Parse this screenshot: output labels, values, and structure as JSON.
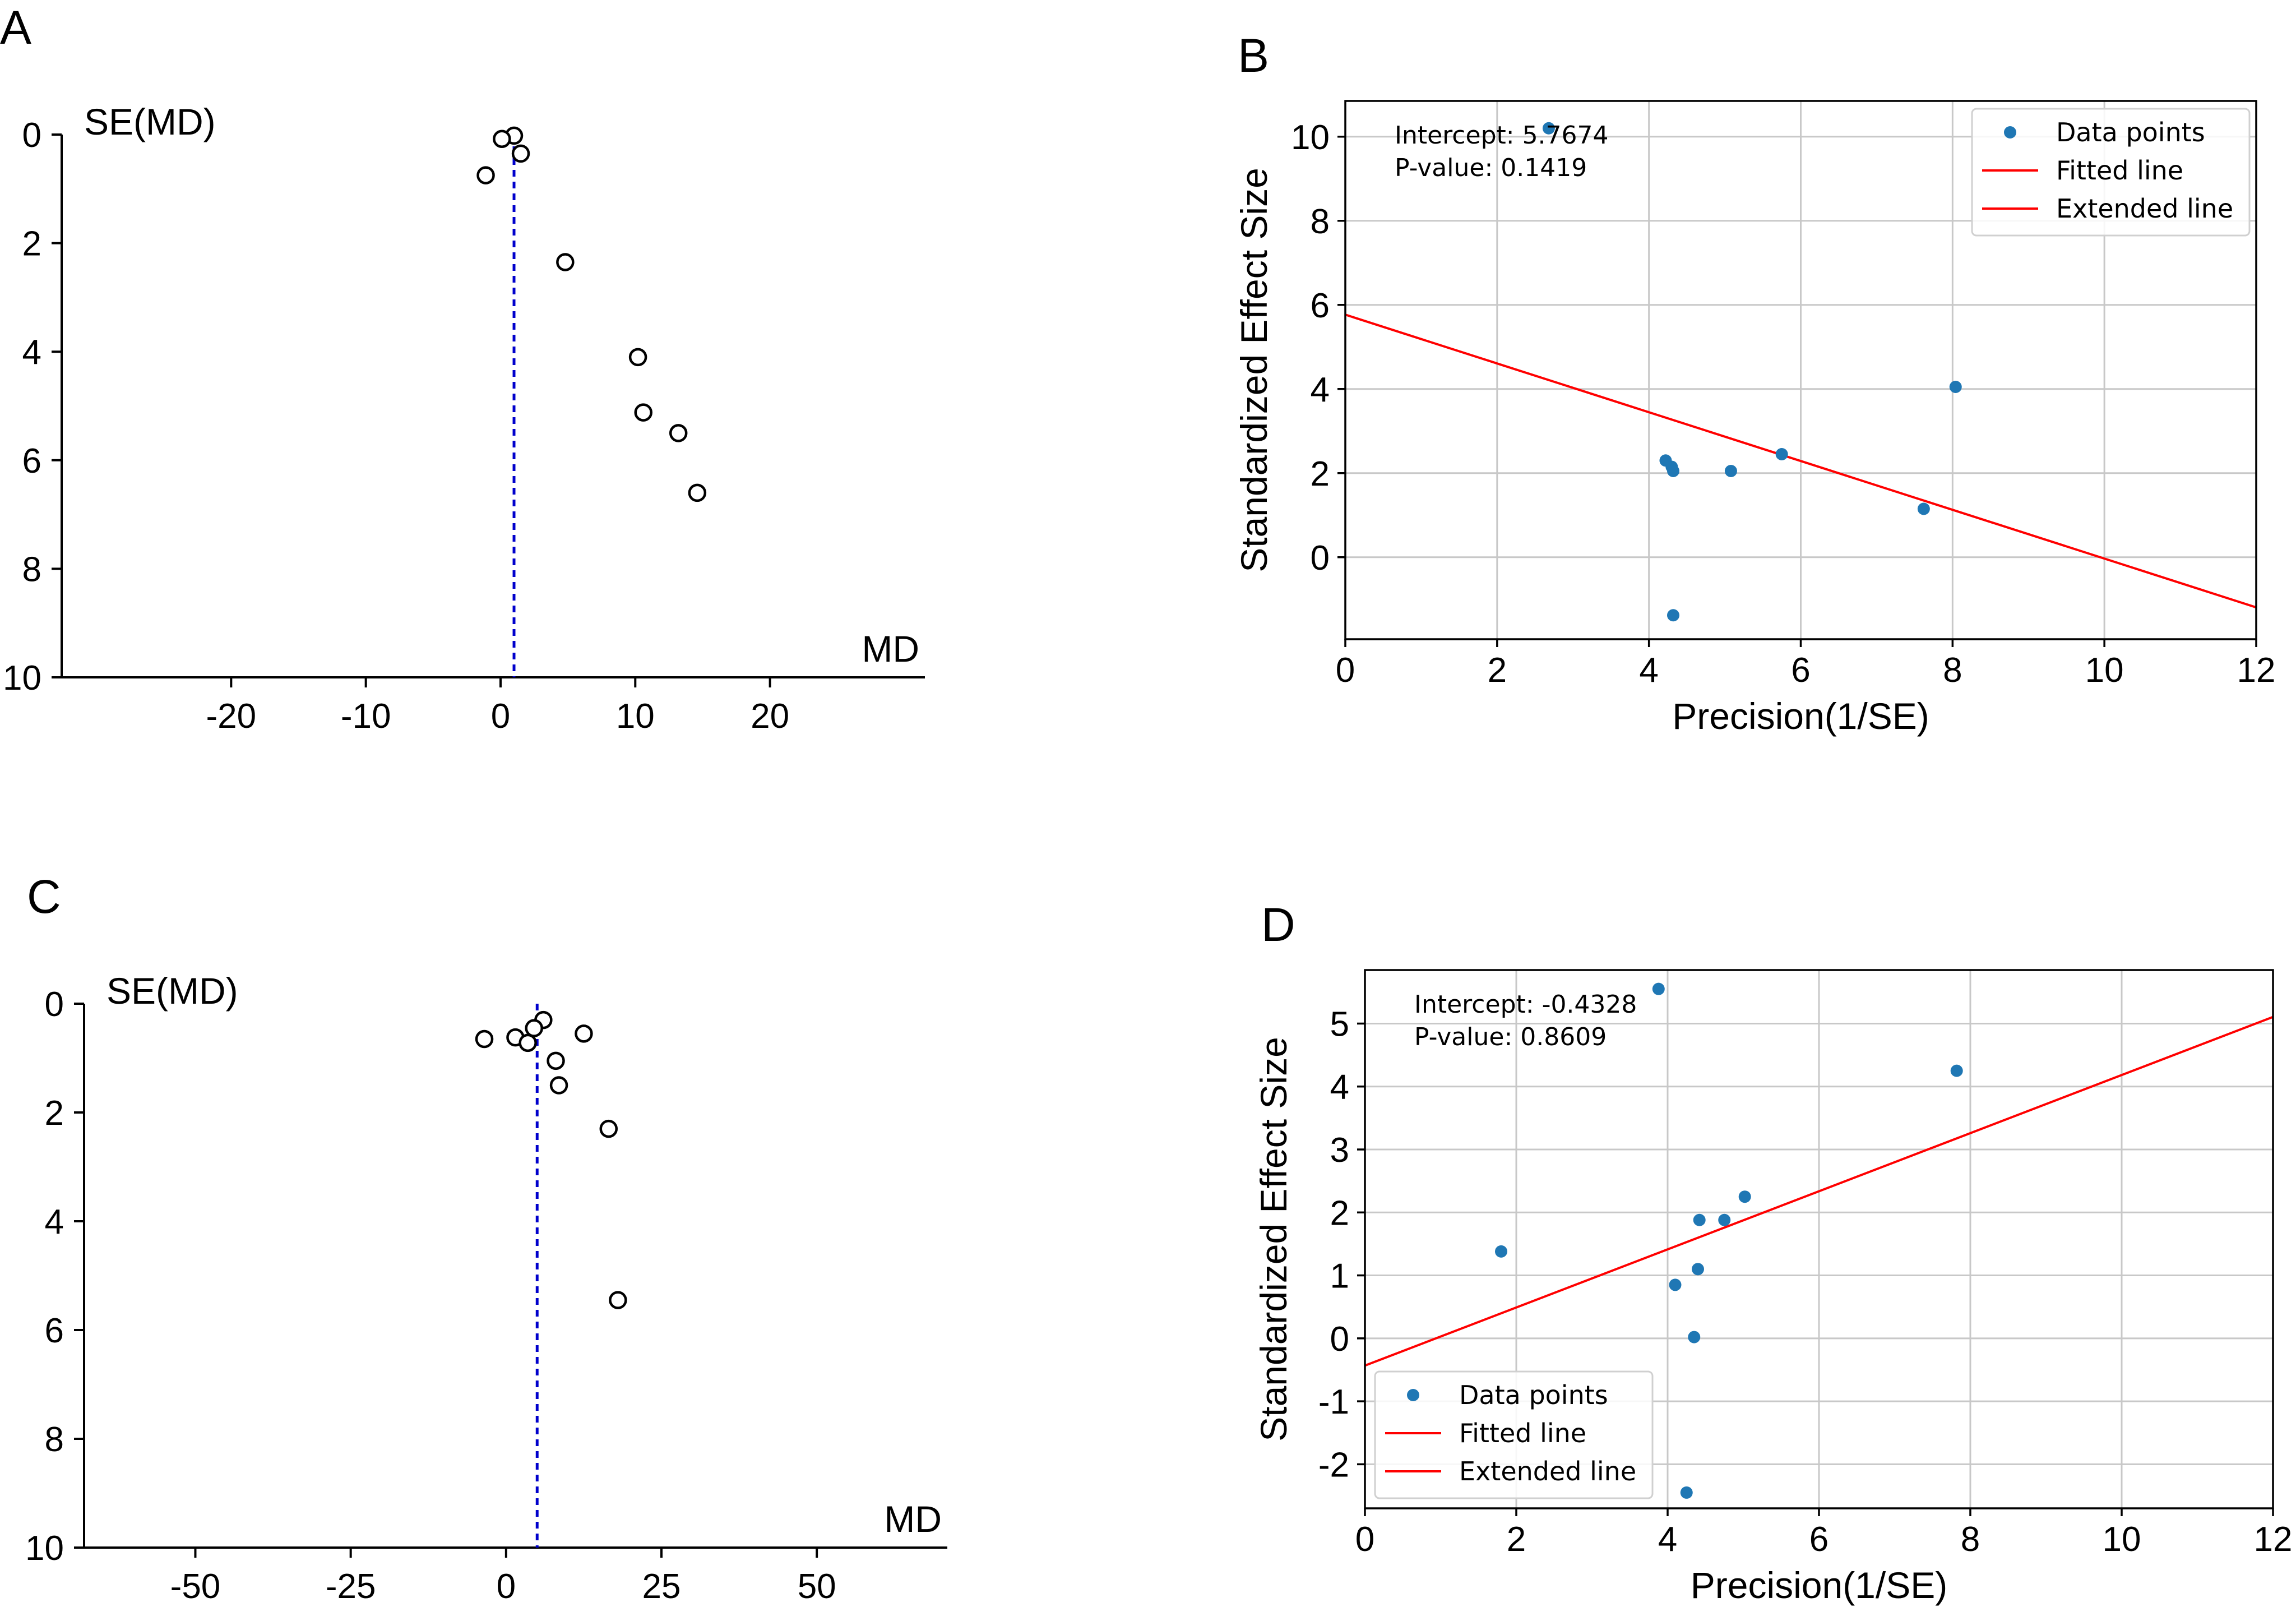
{
  "chart_data": [
    {
      "panel": "A",
      "type": "scatter",
      "subtype": "funnel",
      "xlabel": "MD",
      "ylabel": "SE(MD)",
      "xticks": [
        -20,
        -10,
        0,
        10,
        20
      ],
      "yticks": [
        0,
        2,
        4,
        6,
        8,
        10
      ],
      "xlim": [
        -30.5,
        31.5
      ],
      "ylim": [
        10,
        0
      ],
      "y_inverted": true,
      "pooled_md": 1.0,
      "reference_line_color": "#0000cc",
      "points": [
        {
          "x": 1.0,
          "y": 0.02
        },
        {
          "x": 0.1,
          "y": 0.08
        },
        {
          "x": 1.5,
          "y": 0.35
        },
        {
          "x": -1.1,
          "y": 0.75
        },
        {
          "x": 4.8,
          "y": 2.35
        },
        {
          "x": 10.2,
          "y": 4.1
        },
        {
          "x": 10.6,
          "y": 5.12
        },
        {
          "x": 13.2,
          "y": 5.5
        },
        {
          "x": 14.6,
          "y": 6.6
        }
      ]
    },
    {
      "panel": "B",
      "type": "scatter",
      "subtype": "egger",
      "xlabel": "Precision(1/SE)",
      "ylabel": "Standardized Effect Size",
      "xticks": [
        0,
        2,
        4,
        6,
        8,
        10,
        12
      ],
      "yticks": [
        0,
        2,
        4,
        6,
        8,
        10
      ],
      "xlim": [
        0,
        12
      ],
      "ylim": [
        -1.95,
        10.85
      ],
      "grid": true,
      "intercept_text": "Intercept: 5.7674",
      "pvalue_text": "P-value: 0.1419",
      "intercept": 5.7674,
      "slope": -0.58,
      "point_color": "#1f77b4",
      "line_color": "#ff0000",
      "legend": [
        "Data points",
        "Fitted line",
        "Extended line"
      ],
      "legend_position": "top-right",
      "points": [
        {
          "x": 2.68,
          "y": 10.2
        },
        {
          "x": 4.22,
          "y": 2.3
        },
        {
          "x": 4.3,
          "y": 2.15
        },
        {
          "x": 4.32,
          "y": 2.05
        },
        {
          "x": 5.08,
          "y": 2.05
        },
        {
          "x": 5.75,
          "y": 2.45
        },
        {
          "x": 7.62,
          "y": 1.15
        },
        {
          "x": 8.04,
          "y": 4.05
        },
        {
          "x": 4.32,
          "y": -1.38
        }
      ]
    },
    {
      "panel": "C",
      "type": "scatter",
      "subtype": "funnel",
      "xlabel": "MD",
      "ylabel": "SE(MD)",
      "xticks": [
        -50,
        -25,
        0,
        25,
        50
      ],
      "yticks": [
        0,
        2,
        4,
        6,
        8,
        10
      ],
      "xlim": [
        -67,
        71
      ],
      "ylim": [
        10,
        0
      ],
      "y_inverted": true,
      "pooled_md": 5.0,
      "reference_line_color": "#0000cc",
      "points": [
        {
          "x": 6.0,
          "y": 0.3
        },
        {
          "x": 4.5,
          "y": 0.45
        },
        {
          "x": -3.5,
          "y": 0.65
        },
        {
          "x": 1.5,
          "y": 0.62
        },
        {
          "x": 3.5,
          "y": 0.72
        },
        {
          "x": 12.5,
          "y": 0.55
        },
        {
          "x": 8.0,
          "y": 1.05
        },
        {
          "x": 8.5,
          "y": 1.5
        },
        {
          "x": 16.5,
          "y": 2.3
        },
        {
          "x": 18.0,
          "y": 5.45
        }
      ]
    },
    {
      "panel": "D",
      "type": "scatter",
      "subtype": "egger",
      "xlabel": "Precision(1/SE)",
      "ylabel": "Standardized Effect Size",
      "xticks": [
        0,
        2,
        4,
        6,
        8,
        10,
        12
      ],
      "yticks": [
        -2,
        -1,
        0,
        1,
        2,
        3,
        4,
        5
      ],
      "xlim": [
        0,
        12
      ],
      "ylim": [
        -2.7,
        5.85
      ],
      "grid": true,
      "intercept_text": "Intercept: -0.4328",
      "pvalue_text": "P-value: 0.8609",
      "intercept": -0.4328,
      "slope": 0.4615,
      "point_color": "#1f77b4",
      "line_color": "#ff0000",
      "legend": [
        "Data points",
        "Fitted line",
        "Extended line"
      ],
      "legend_position": "lower-left",
      "points": [
        {
          "x": 3.88,
          "y": 5.55
        },
        {
          "x": 7.82,
          "y": 4.25
        },
        {
          "x": 5.02,
          "y": 2.25
        },
        {
          "x": 4.42,
          "y": 1.88
        },
        {
          "x": 4.75,
          "y": 1.88
        },
        {
          "x": 1.8,
          "y": 1.38
        },
        {
          "x": 4.4,
          "y": 1.1
        },
        {
          "x": 4.1,
          "y": 0.85
        },
        {
          "x": 4.35,
          "y": 0.02
        },
        {
          "x": 4.25,
          "y": -2.45
        }
      ]
    }
  ]
}
